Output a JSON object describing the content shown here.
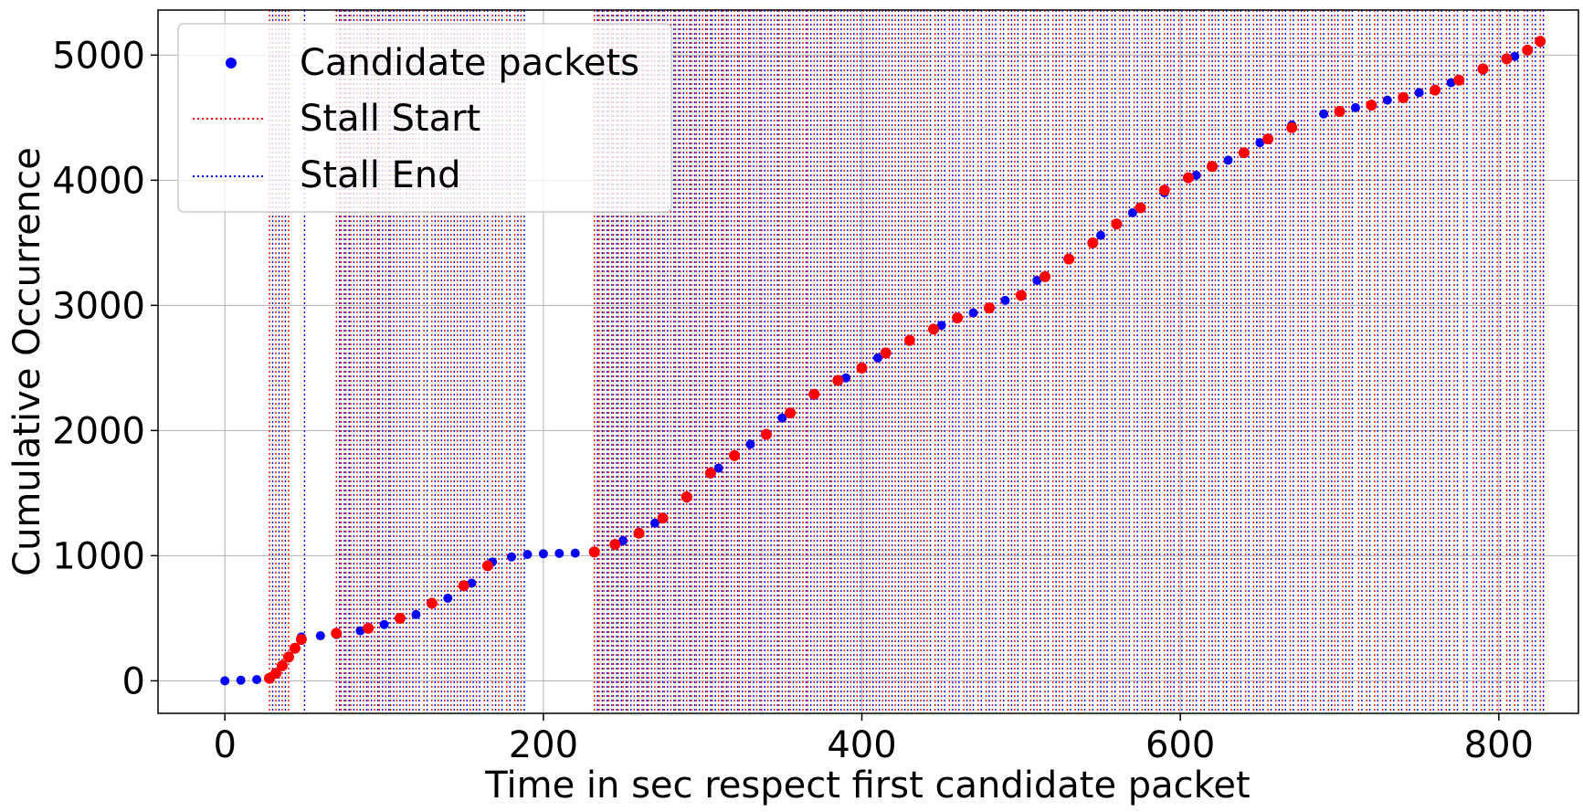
{
  "chart_data": {
    "type": "scatter",
    "xlabel": "Time in sec respect first candidate packet",
    "ylabel": "Cumulative Occurrence",
    "xlim": [
      -42,
      850
    ],
    "ylim": [
      -260,
      5360
    ],
    "xticks": [
      0,
      200,
      400,
      600,
      800
    ],
    "yticks": [
      0,
      1000,
      2000,
      3000,
      4000,
      5000
    ],
    "xtick_labels": [
      "0",
      "200",
      "400",
      "600",
      "800"
    ],
    "ytick_labels": [
      "0",
      "1000",
      "2000",
      "3000",
      "4000",
      "5000"
    ],
    "grid": true,
    "legend": {
      "placement": "upper-left",
      "entries": [
        "Candidate packets",
        "Stall Start",
        "Stall End"
      ]
    },
    "colors": {
      "candidate": "#0000ff",
      "stall_packets": "#ff0000",
      "stall_start": "#ff0000",
      "stall_end": "#0000ff",
      "grid": "#b0b0b0"
    },
    "series": [
      {
        "name": "Candidate packets",
        "style": "scatter",
        "points": [
          [
            0,
            0
          ],
          [
            10,
            5
          ],
          [
            20,
            10
          ],
          [
            28,
            18
          ],
          [
            48,
            350
          ],
          [
            60,
            360
          ],
          [
            70,
            370
          ],
          [
            85,
            400
          ],
          [
            100,
            450
          ],
          [
            120,
            530
          ],
          [
            140,
            660
          ],
          [
            155,
            780
          ],
          [
            168,
            950
          ],
          [
            180,
            990
          ],
          [
            190,
            1010
          ],
          [
            200,
            1015
          ],
          [
            210,
            1018
          ],
          [
            220,
            1020
          ],
          [
            232,
            1022
          ],
          [
            250,
            1120
          ],
          [
            270,
            1260
          ],
          [
            290,
            1460
          ],
          [
            310,
            1700
          ],
          [
            330,
            1890
          ],
          [
            350,
            2100
          ],
          [
            370,
            2280
          ],
          [
            390,
            2420
          ],
          [
            410,
            2580
          ],
          [
            430,
            2720
          ],
          [
            450,
            2840
          ],
          [
            470,
            2940
          ],
          [
            490,
            3040
          ],
          [
            510,
            3200
          ],
          [
            530,
            3370
          ],
          [
            550,
            3560
          ],
          [
            570,
            3740
          ],
          [
            590,
            3900
          ],
          [
            610,
            4040
          ],
          [
            630,
            4160
          ],
          [
            650,
            4300
          ],
          [
            670,
            4440
          ],
          [
            690,
            4530
          ],
          [
            710,
            4580
          ],
          [
            730,
            4640
          ],
          [
            750,
            4700
          ],
          [
            770,
            4780
          ],
          [
            790,
            4880
          ],
          [
            810,
            4990
          ],
          [
            826,
            5100
          ]
        ]
      },
      {
        "name": "Stall packets",
        "style": "scatter",
        "points": [
          [
            28,
            20
          ],
          [
            32,
            60
          ],
          [
            36,
            120
          ],
          [
            40,
            190
          ],
          [
            44,
            260
          ],
          [
            48,
            330
          ],
          [
            70,
            380
          ],
          [
            90,
            420
          ],
          [
            110,
            500
          ],
          [
            130,
            620
          ],
          [
            150,
            760
          ],
          [
            165,
            920
          ],
          [
            232,
            1030
          ],
          [
            245,
            1090
          ],
          [
            260,
            1180
          ],
          [
            275,
            1300
          ],
          [
            290,
            1470
          ],
          [
            305,
            1660
          ],
          [
            320,
            1800
          ],
          [
            340,
            1970
          ],
          [
            355,
            2140
          ],
          [
            370,
            2290
          ],
          [
            385,
            2400
          ],
          [
            400,
            2500
          ],
          [
            415,
            2620
          ],
          [
            430,
            2720
          ],
          [
            445,
            2810
          ],
          [
            460,
            2900
          ],
          [
            480,
            2980
          ],
          [
            500,
            3080
          ],
          [
            515,
            3230
          ],
          [
            530,
            3370
          ],
          [
            545,
            3500
          ],
          [
            560,
            3650
          ],
          [
            575,
            3780
          ],
          [
            590,
            3920
          ],
          [
            605,
            4020
          ],
          [
            620,
            4110
          ],
          [
            640,
            4220
          ],
          [
            655,
            4330
          ],
          [
            670,
            4420
          ],
          [
            700,
            4550
          ],
          [
            720,
            4600
          ],
          [
            740,
            4660
          ],
          [
            760,
            4720
          ],
          [
            775,
            4800
          ],
          [
            790,
            4890
          ],
          [
            805,
            4970
          ],
          [
            818,
            5040
          ],
          [
            826,
            5110
          ]
        ]
      }
    ],
    "stall_start_x": [
      28,
      32,
      36,
      40,
      70,
      73,
      76,
      79,
      83,
      87,
      90,
      94,
      97,
      101,
      104,
      108,
      112,
      116,
      120,
      125,
      130,
      134,
      138,
      142,
      146,
      150,
      154,
      158,
      163,
      168,
      172,
      177,
      182,
      186,
      232,
      235,
      238,
      241,
      244,
      247,
      250,
      253,
      257,
      260,
      263,
      266,
      270,
      273,
      276,
      280,
      283,
      286,
      290,
      293,
      296,
      300,
      303,
      306,
      310,
      313,
      316,
      320,
      323,
      327,
      330,
      334,
      337,
      341,
      345,
      348,
      352,
      355,
      359,
      363,
      366,
      370,
      374,
      378,
      381,
      385,
      389,
      393,
      397,
      401,
      405,
      409,
      413,
      417,
      421,
      425,
      429,
      433,
      437,
      441,
      446,
      450,
      455,
      459,
      464,
      468,
      473,
      478,
      482,
      487,
      492,
      496,
      501,
      506,
      510,
      515,
      520,
      524,
      529,
      534,
      538,
      543,
      548,
      552,
      557,
      562,
      566,
      571,
      576,
      580,
      585,
      590,
      594,
      599,
      604,
      608,
      613,
      618,
      622,
      627,
      632,
      636,
      641,
      646,
      650,
      655,
      660,
      664,
      669,
      674,
      678,
      683,
      688,
      693,
      697,
      702,
      706,
      712,
      717,
      722,
      727,
      732,
      737,
      742,
      747,
      752,
      757,
      762,
      767,
      772,
      778,
      784,
      789,
      794,
      799,
      805,
      810,
      816,
      821,
      826
    ],
    "stall_end_x": [
      30,
      34,
      38,
      50,
      72,
      75,
      78,
      81,
      85,
      89,
      92,
      96,
      99,
      103,
      106,
      110,
      114,
      118,
      122,
      127,
      132,
      136,
      140,
      144,
      148,
      152,
      156,
      160,
      165,
      170,
      174,
      179,
      184,
      188,
      234,
      237,
      240,
      243,
      246,
      249,
      252,
      255,
      259,
      262,
      265,
      268,
      272,
      275,
      278,
      282,
      285,
      288,
      292,
      295,
      298,
      302,
      305,
      308,
      312,
      315,
      318,
      322,
      325,
      329,
      332,
      336,
      339,
      343,
      347,
      350,
      354,
      357,
      361,
      365,
      368,
      372,
      376,
      380,
      383,
      387,
      391,
      395,
      399,
      403,
      407,
      411,
      415,
      419,
      423,
      427,
      431,
      435,
      439,
      443,
      448,
      452,
      457,
      461,
      466,
      470,
      475,
      480,
      484,
      489,
      494,
      498,
      503,
      508,
      512,
      517,
      522,
      526,
      531,
      536,
      540,
      545,
      550,
      554,
      559,
      564,
      568,
      573,
      578,
      582,
      587,
      592,
      596,
      601,
      606,
      610,
      615,
      620,
      624,
      629,
      634,
      638,
      643,
      648,
      652,
      657,
      662,
      666,
      671,
      676,
      680,
      685,
      690,
      695,
      699,
      704,
      708,
      714,
      719,
      724,
      729,
      734,
      739,
      744,
      749,
      754,
      759,
      764,
      769,
      774,
      780,
      786,
      791,
      796,
      801,
      807,
      812,
      818,
      823,
      828
    ]
  }
}
